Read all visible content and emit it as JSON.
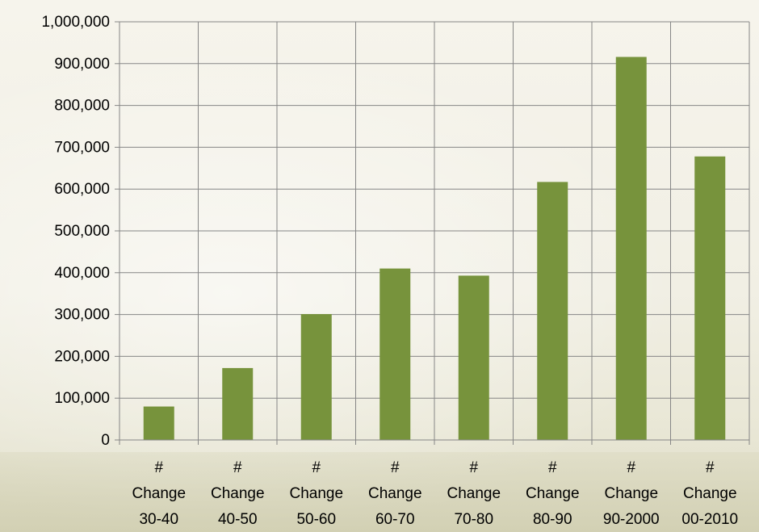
{
  "chart_data": {
    "type": "bar",
    "title": "",
    "xlabel": "",
    "ylabel": "",
    "categories": [
      [
        "#",
        "Change",
        "30-40"
      ],
      [
        "#",
        "Change",
        "40-50"
      ],
      [
        "#",
        "Change",
        "50-60"
      ],
      [
        "#",
        "Change",
        "60-70"
      ],
      [
        "#",
        "Change",
        "70-80"
      ],
      [
        "#",
        "Change",
        "80-90"
      ],
      [
        "#",
        "Change",
        "90-2000"
      ],
      [
        "#",
        "Change",
        "00-2010"
      ]
    ],
    "series": [
      {
        "values": [
          80000,
          172000,
          301000,
          410000,
          393000,
          617000,
          916000,
          678000
        ],
        "color": "#77933c"
      }
    ],
    "ylim": [
      0,
      1000000
    ],
    "yticks": [
      0,
      100000,
      200000,
      300000,
      400000,
      500000,
      600000,
      700000,
      800000,
      900000,
      1000000
    ],
    "ytick_labels": [
      "0",
      "100,000",
      "200,000",
      "300,000",
      "400,000",
      "500,000",
      "600,000",
      "700,000",
      "800,000",
      "900,000",
      "1,000,000"
    ],
    "grid": true,
    "legend": "none"
  }
}
